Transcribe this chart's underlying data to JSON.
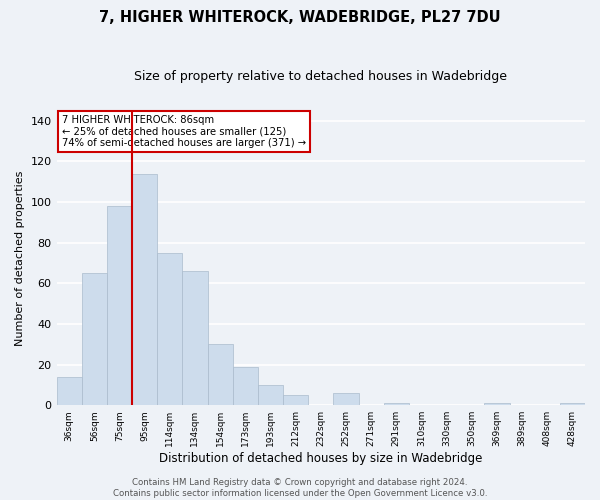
{
  "title": "7, HIGHER WHITEROCK, WADEBRIDGE, PL27 7DU",
  "subtitle": "Size of property relative to detached houses in Wadebridge",
  "xlabel": "Distribution of detached houses by size in Wadebridge",
  "ylabel": "Number of detached properties",
  "bin_labels": [
    "36sqm",
    "56sqm",
    "75sqm",
    "95sqm",
    "114sqm",
    "134sqm",
    "154sqm",
    "173sqm",
    "193sqm",
    "212sqm",
    "232sqm",
    "252sqm",
    "271sqm",
    "291sqm",
    "310sqm",
    "330sqm",
    "350sqm",
    "369sqm",
    "389sqm",
    "408sqm",
    "428sqm"
  ],
  "bar_heights": [
    14,
    65,
    98,
    114,
    75,
    66,
    30,
    19,
    10,
    5,
    0,
    6,
    0,
    1,
    0,
    0,
    0,
    1,
    0,
    0,
    1
  ],
  "bar_color": "#cddcec",
  "bar_edge_color": "#aabbcc",
  "vline_color": "#cc0000",
  "ylim": [
    0,
    145
  ],
  "yticks": [
    0,
    20,
    40,
    60,
    80,
    100,
    120,
    140
  ],
  "annotation_title": "7 HIGHER WHITEROCK: 86sqm",
  "annotation_line1": "← 25% of detached houses are smaller (125)",
  "annotation_line2": "74% of semi-detached houses are larger (371) →",
  "annotation_box_color": "#ffffff",
  "annotation_box_edge_color": "#cc0000",
  "footer_line1": "Contains HM Land Registry data © Crown copyright and database right 2024.",
  "footer_line2": "Contains public sector information licensed under the Open Government Licence v3.0.",
  "background_color": "#eef2f7",
  "plot_bg_color": "#eef2f7",
  "grid_color": "#ffffff",
  "title_fontsize": 10.5,
  "subtitle_fontsize": 9,
  "footer_fontsize": 6.2,
  "ylabel_fontsize": 8,
  "xlabel_fontsize": 8.5
}
